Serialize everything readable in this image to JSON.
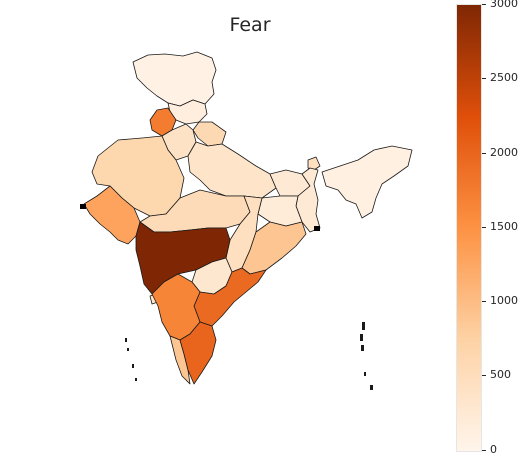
{
  "map": {
    "title": "Fear"
  },
  "colorbar": {
    "min": 0,
    "max": 3000,
    "ticks": [
      {
        "label": "3000",
        "value": 3000
      },
      {
        "label": "2500",
        "value": 2500
      },
      {
        "label": "2000",
        "value": 2000
      },
      {
        "label": "1500",
        "value": 1500
      },
      {
        "label": "1000",
        "value": 1000
      },
      {
        "label": "500",
        "value": 500
      },
      {
        "label": "0",
        "value": 0
      }
    ],
    "colors": [
      "#fff5eb",
      "#fdd2a5",
      "#fd9243",
      "#df4f0a",
      "#7f2704"
    ]
  },
  "regions": [
    {
      "name": "jammu-kashmir",
      "value": 60
    },
    {
      "name": "himachal-pradesh",
      "value": 150
    },
    {
      "name": "punjab",
      "value": 1750
    },
    {
      "name": "uttarakhand",
      "value": 600
    },
    {
      "name": "haryana",
      "value": 400
    },
    {
      "name": "rajasthan",
      "value": 650
    },
    {
      "name": "uttar-pradesh",
      "value": 350
    },
    {
      "name": "bihar",
      "value": 250
    },
    {
      "name": "gujarat",
      "value": 1300
    },
    {
      "name": "madhya-pradesh",
      "value": 550
    },
    {
      "name": "jharkhand",
      "value": 200
    },
    {
      "name": "west-bengal",
      "value": 250
    },
    {
      "name": "chhattisgarh",
      "value": 450
    },
    {
      "name": "odisha",
      "value": 900
    },
    {
      "name": "maharashtra",
      "value": 3000
    },
    {
      "name": "telangana",
      "value": 300
    },
    {
      "name": "andhra-pradesh",
      "value": 1950
    },
    {
      "name": "karnataka",
      "value": 1650
    },
    {
      "name": "goa",
      "value": 300
    },
    {
      "name": "kerala",
      "value": 900
    },
    {
      "name": "tamil-nadu",
      "value": 2000
    },
    {
      "name": "sikkim",
      "value": 450
    },
    {
      "name": "northeast-states",
      "value": 100
    }
  ]
}
